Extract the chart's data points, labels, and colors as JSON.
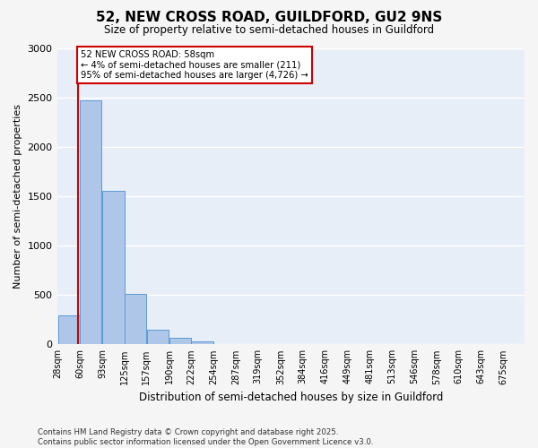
{
  "title_line1": "52, NEW CROSS ROAD, GUILDFORD, GU2 9NS",
  "title_line2": "Size of property relative to semi-detached houses in Guildford",
  "xlabel": "Distribution of semi-detached houses by size in Guildford",
  "ylabel": "Number of semi-detached properties",
  "annotation_line1": "52 NEW CROSS ROAD: 58sqm",
  "annotation_line2": "← 4% of semi-detached houses are smaller (211)",
  "annotation_line3": "95% of semi-detached houses are larger (4,726) →",
  "bin_edges": [
    28,
    60,
    93,
    125,
    157,
    190,
    222,
    254,
    287,
    319,
    352,
    384,
    416,
    449,
    481,
    513,
    546,
    578,
    610,
    643,
    675
  ],
  "bin_labels": [
    "28sqm",
    "60sqm",
    "93sqm",
    "125sqm",
    "157sqm",
    "190sqm",
    "222sqm",
    "254sqm",
    "287sqm",
    "319sqm",
    "352sqm",
    "384sqm",
    "416sqm",
    "449sqm",
    "481sqm",
    "513sqm",
    "546sqm",
    "578sqm",
    "610sqm",
    "643sqm",
    "675sqm"
  ],
  "values": [
    290,
    2470,
    1560,
    510,
    150,
    70,
    30,
    5,
    2,
    1,
    1,
    0,
    0,
    0,
    0,
    0,
    0,
    0,
    0,
    0
  ],
  "bar_color": "#aec6e8",
  "bar_edge_color": "#5b9bd5",
  "vline_color": "#cc0000",
  "vline_x": 58,
  "ylim": [
    0,
    3000
  ],
  "yticks": [
    0,
    500,
    1000,
    1500,
    2000,
    2500,
    3000
  ],
  "bg_color": "#e8eef7",
  "grid_color": "#ffffff",
  "fig_bg_color": "#f5f5f5",
  "footer_line1": "Contains HM Land Registry data © Crown copyright and database right 2025.",
  "footer_line2": "Contains public sector information licensed under the Open Government Licence v3.0."
}
